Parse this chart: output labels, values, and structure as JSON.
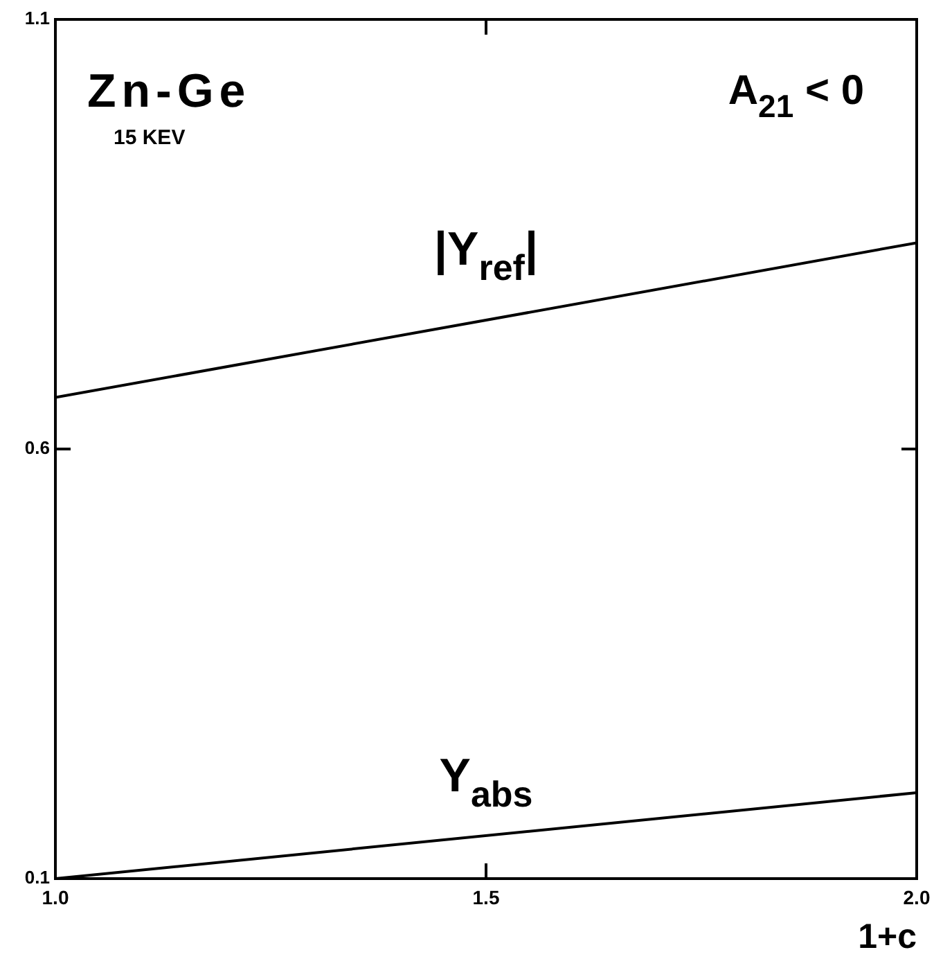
{
  "chart_data": {
    "type": "line",
    "title": "Zn-Ge",
    "subtitle": "15 KEV",
    "xlabel": "1+c",
    "annotations": [
      "A$_{21}$ < 0"
    ],
    "xlim": [
      1.0,
      2.0
    ],
    "xticks": [
      {
        "value": 1.0,
        "label": "1.0"
      },
      1.5,
      {
        "value": 2.0,
        "label": "2.0"
      }
    ],
    "ylim": [
      0.1,
      1.1
    ],
    "yticks": [
      0.1,
      0.6,
      1.1
    ],
    "marker": "none",
    "line_style": "solid",
    "x": [
      1.0,
      2.0
    ],
    "series": [
      {
        "name": "|Y$_{ref}$|",
        "color": "#000000",
        "values": [
          0.66,
          0.84
        ]
      },
      {
        "name": "Y$_{abs}$",
        "color": "#000000",
        "values": [
          0.1,
          0.2
        ]
      }
    ]
  }
}
